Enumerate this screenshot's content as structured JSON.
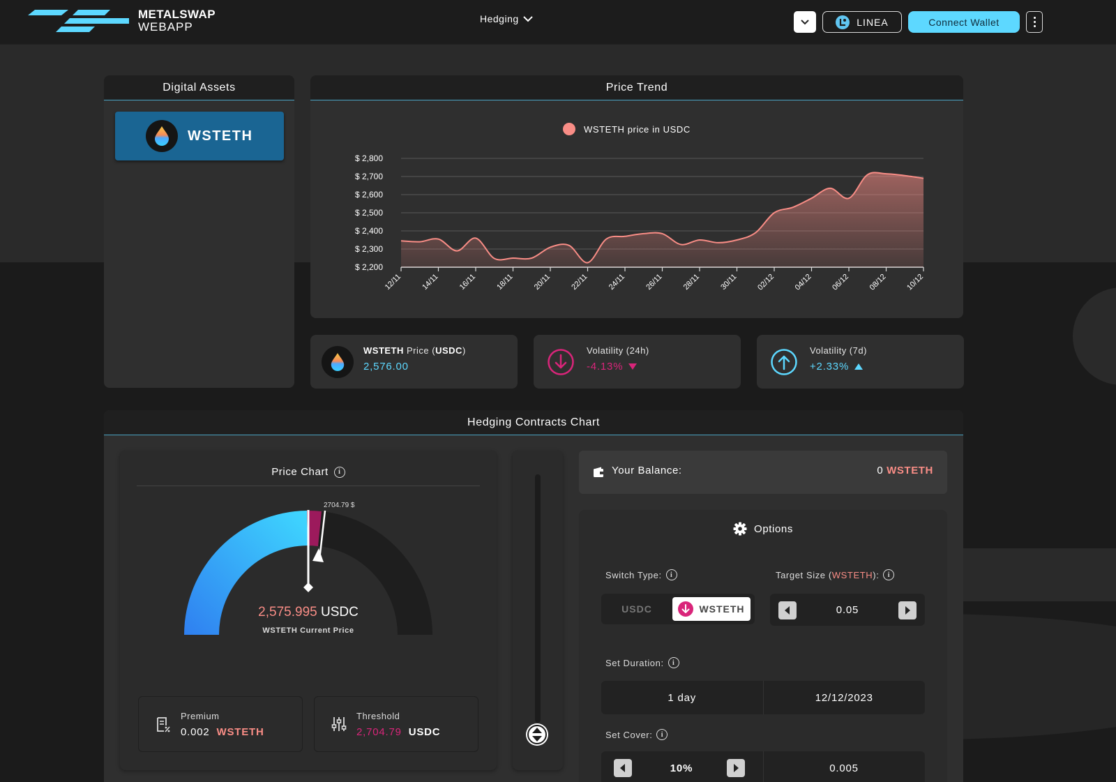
{
  "header": {
    "brand_line1": "METALSWAP",
    "brand_line2": "WEBAPP",
    "nav_label": "Hedging",
    "network_label": "LINEA",
    "connect_label": "Connect Wallet"
  },
  "assets": {
    "title": "Digital Assets",
    "selected": "WSTETH"
  },
  "trend": {
    "title": "Price Trend",
    "legend": "WSTETH price in USDC"
  },
  "chart_data": {
    "type": "area",
    "title": "",
    "xlabel": "",
    "ylabel": "",
    "series": [
      {
        "name": "WSTETH price in USDC",
        "color": "#f98d86"
      }
    ],
    "x_ticks": [
      "12/11",
      "14/11",
      "16/11",
      "18/11",
      "20/11",
      "22/11",
      "24/11",
      "26/11",
      "28/11",
      "30/11",
      "02/12",
      "04/12",
      "06/12",
      "08/12",
      "10/12"
    ],
    "y_ticks": [
      "$ 2,200",
      "$ 2,300",
      "$ 2,400",
      "$ 2,500",
      "$ 2,600",
      "$ 2,700",
      "$ 2,800"
    ],
    "ylim": [
      2200,
      2800
    ],
    "x": [
      0,
      0.5,
      1,
      1.5,
      2,
      2.5,
      3,
      3.5,
      4,
      4.5,
      5,
      5.5,
      6,
      6.5,
      7,
      7.5,
      8,
      8.5,
      9,
      9.5,
      10,
      10.5,
      11,
      11.5,
      12,
      12.5,
      13,
      13.5,
      14
    ],
    "values": [
      2345,
      2340,
      2355,
      2290,
      2360,
      2248,
      2250,
      2250,
      2310,
      2320,
      2225,
      2355,
      2370,
      2385,
      2385,
      2325,
      2350,
      2335,
      2350,
      2390,
      2500,
      2530,
      2580,
      2635,
      2580,
      2710,
      2715,
      2705,
      2690
    ],
    "grid": true
  },
  "stats": {
    "price_asset": "WSTETH",
    "price_label": "Price",
    "price_unit": "USDC",
    "price_value": "2,576.00",
    "vol24_label": "Volatility (24h)",
    "vol24_value": "-4.13%",
    "vol7_label": "Volatility (7d)",
    "vol7_value": "+2.33%"
  },
  "hedging": {
    "title": "Hedging Contracts Chart",
    "price_chart_title": "Price Chart",
    "gauge_marker_label": "2704.79 $",
    "current_price_num": "2,575.995",
    "current_price_cur": "USDC",
    "current_price_label": "WSTETH Current Price",
    "premium_label": "Premium",
    "premium_value": "0.002",
    "premium_asset": "WSTETH",
    "threshold_label": "Threshold",
    "threshold_value": "2,704.79",
    "threshold_cur": "USDC"
  },
  "balance": {
    "label": "Your Balance:",
    "amount": "0",
    "asset": "WSTETH"
  },
  "options": {
    "title": "Options",
    "switch_label": "Switch Type:",
    "switch_off": "USDC",
    "switch_on": "WSTETH",
    "target_label_prefix": "Target Size (",
    "target_asset": "WSTETH",
    "target_label_suffix": "):",
    "target_value": "0.05",
    "duration_label": "Set Duration:",
    "duration_value": "1 day",
    "duration_date": "12/12/2023",
    "cover_label": "Set Cover:",
    "cover_pct": "10%",
    "cover_amount": "0.005"
  },
  "colors": {
    "accent": "#5dd8ff",
    "asset_button": "#1a6593",
    "price_line": "#f98d86",
    "negative": "#d9257a",
    "positive": "#5dd8ff"
  }
}
